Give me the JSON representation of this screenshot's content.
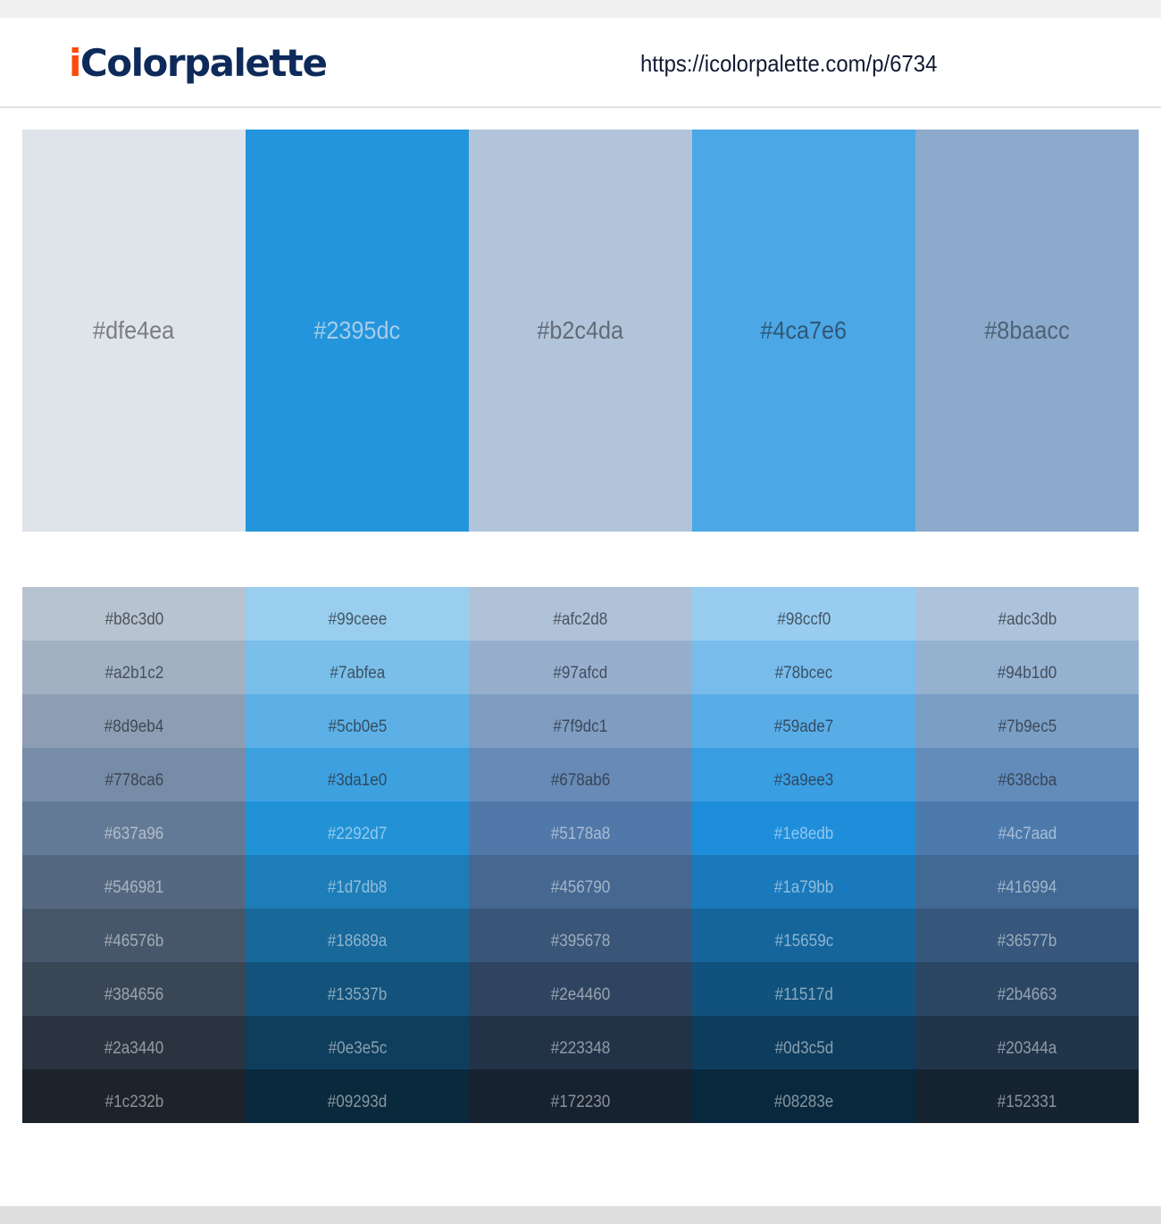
{
  "header": {
    "logo_i": "i",
    "logo_rest": "Colorpalette",
    "url": "https://icolorpalette.com/p/6734",
    "colors": {
      "logo_i": "#ff4a0a",
      "logo_rest": "#0d2a5a"
    }
  },
  "palette": [
    {
      "hex": "#dfe4ea",
      "text_color": "#7a7d82"
    },
    {
      "hex": "#2395dc",
      "text_color": "#a7cbe9"
    },
    {
      "hex": "#b2c4da",
      "text_color": "#626c78"
    },
    {
      "hex": "#4ca7e6",
      "text_color": "#2f5878"
    },
    {
      "hex": "#8baacc",
      "text_color": "#4f6276"
    }
  ],
  "shades": [
    [
      "#b8c3d0",
      "#a2b1c2",
      "#8d9eb4",
      "#778ca6",
      "#637a96",
      "#546981",
      "#46576b",
      "#384656",
      "#2a3440",
      "#1c232b"
    ],
    [
      "#99ceee",
      "#7abfea",
      "#5cb0e5",
      "#3da1e0",
      "#2292d7",
      "#1d7db8",
      "#18689a",
      "#13537b",
      "#0e3e5c",
      "#09293d"
    ],
    [
      "#afc2d8",
      "#97afcd",
      "#7f9dc1",
      "#678ab6",
      "#5178a8",
      "#456790",
      "#395678",
      "#2e4460",
      "#223348",
      "#172230"
    ],
    [
      "#98ccf0",
      "#78bcec",
      "#59ade7",
      "#3a9ee3",
      "#1e8edb",
      "#1a79bb",
      "#15659c",
      "#11517d",
      "#0d3c5d",
      "#08283e"
    ],
    [
      "#adc3db",
      "#94b1d0",
      "#7b9ec5",
      "#638cba",
      "#4c7aad",
      "#416994",
      "#36577b",
      "#2b4663",
      "#20344a",
      "#152331"
    ]
  ]
}
